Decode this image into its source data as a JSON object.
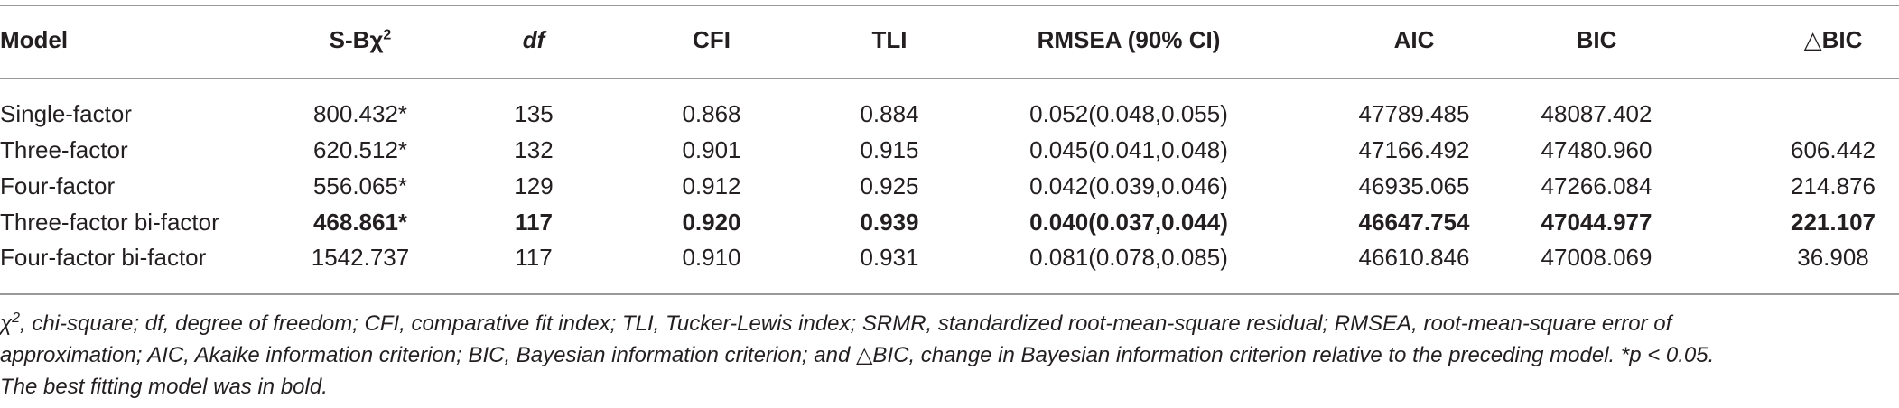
{
  "table": {
    "headers": [
      {
        "text": "Model",
        "sup": ""
      },
      {
        "text": "S-Bχ",
        "sup": "2"
      },
      {
        "text": "df",
        "sup": ""
      },
      {
        "text": "CFI",
        "sup": ""
      },
      {
        "text": "TLI",
        "sup": ""
      },
      {
        "text": "RMSEA (90% CI)",
        "sup": ""
      },
      {
        "text": "AIC",
        "sup": ""
      },
      {
        "text": "BIC",
        "sup": ""
      },
      {
        "text": "△BIC",
        "sup": ""
      }
    ],
    "rows": [
      {
        "cells": [
          "Single-factor",
          "800.432*",
          "135",
          "0.868",
          "0.884",
          "0.052(0.048,0.055)",
          "47789.485",
          "48087.402",
          ""
        ]
      },
      {
        "cells": [
          "Three-factor",
          "620.512*",
          "132",
          "0.901",
          "0.915",
          "0.045(0.041,0.048)",
          "47166.492",
          "47480.960",
          "606.442"
        ]
      },
      {
        "cells": [
          "Four-factor",
          "556.065*",
          "129",
          "0.912",
          "0.925",
          "0.042(0.039,0.046)",
          "46935.065",
          "47266.084",
          "214.876"
        ]
      },
      {
        "cells": [
          "Three-factor bi-factor",
          "468.861*",
          "117",
          "0.920",
          "0.939",
          "0.040(0.037,0.044)",
          "46647.754",
          "47044.977",
          "221.107"
        ],
        "bold": true
      },
      {
        "cells": [
          "Four-factor bi-factor",
          "1542.737",
          "117",
          "0.910",
          "0.931",
          "0.081(0.078,0.085)",
          "46610.846",
          "47008.069",
          "36.908"
        ]
      }
    ]
  },
  "footnote": {
    "chi_symbol": "χ",
    "chi_sup": "2",
    "line1": ", chi-square; df, degree of freedom; CFI, comparative fit index; TLI, Tucker-Lewis index; SRMR, standardized root-mean-square residual; RMSEA, root-mean-square error of",
    "line2": "approximation; AIC, Akaike information criterion; BIC, Bayesian information criterion; and △BIC, change in Bayesian information criterion relative to the preceding model. *p < 0.05.",
    "line3": "The best fitting model was in bold."
  }
}
